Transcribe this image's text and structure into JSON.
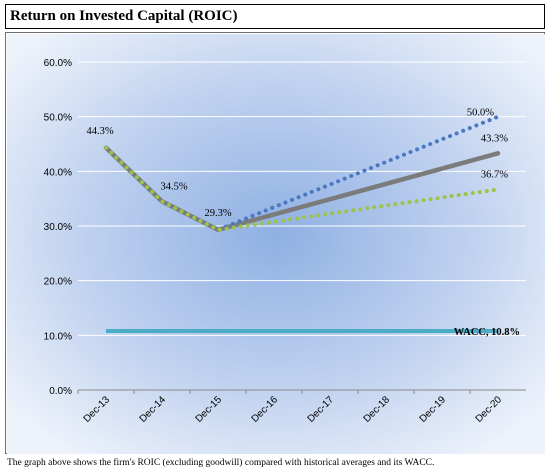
{
  "title": "Return on Invested Capital (ROIC)",
  "caption": "The graph above shows the firm's ROIC (excluding goodwill) compared with historical averages and its WACC.",
  "chart_data": {
    "type": "line",
    "categories": [
      "Dec-13",
      "Dec-14",
      "Dec-15",
      "Dec-16",
      "Dec-17",
      "Dec-18",
      "Dec-19",
      "Dec-20"
    ],
    "ylim": [
      0,
      60
    ],
    "yticks": [
      "0.0%",
      "10.0%",
      "20.0%",
      "30.0%",
      "40.0%",
      "50.0%",
      "60.0%"
    ],
    "ytick_values": [
      0,
      10,
      20,
      30,
      40,
      50,
      60
    ],
    "grid": true,
    "series": [
      {
        "values": [
          44.3,
          34.5,
          29.3,
          31.4,
          33.4,
          35.5,
          37.6,
          36.7
        ],
        "style": "green-dotted",
        "color": "#9dc34a"
      },
      {
        "values": [
          44.3,
          34.5,
          29.3,
          32.6,
          35.9,
          39.3,
          42.6,
          50.0
        ],
        "style": "blue-dotted",
        "color": "#4a78c2"
      },
      {
        "values": [
          44.3,
          34.5,
          29.3,
          31.6,
          33.9,
          36.3,
          38.6,
          43.3
        ],
        "style": "gray-solid",
        "color": "#7b7b7b"
      },
      {
        "values": [
          10.8,
          10.8,
          10.8,
          10.8,
          10.8,
          10.8,
          10.8,
          10.8
        ],
        "style": "teal-solid",
        "color": "#4bacc6"
      }
    ],
    "data_labels": [
      {
        "series": 2,
        "index": 0,
        "text": "44.3%"
      },
      {
        "series": 2,
        "index": 1,
        "text": "34.5%"
      },
      {
        "series": 2,
        "index": 2,
        "text": "29.3%"
      },
      {
        "series": 1,
        "index": 7,
        "text": "50.0%"
      },
      {
        "series": 2,
        "index": 7,
        "text": "43.3%"
      },
      {
        "series": 0,
        "index": 7,
        "text": "36.7%"
      },
      {
        "series": 3,
        "index": 7,
        "text": "WACC, 10.8%"
      }
    ]
  }
}
